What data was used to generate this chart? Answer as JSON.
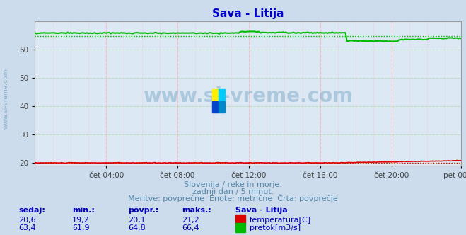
{
  "title": "Sava - Litija",
  "title_color": "#0000cc",
  "bg_color": "#ccdcec",
  "plot_bg_color": "#dce8f4",
  "grid_color_v": "#ffbbbb",
  "grid_color_h": "#bbddbb",
  "watermark": "www.si-vreme.com",
  "watermark_color": "#6699bb",
  "subtitle1": "Slovenija / reke in morje.",
  "subtitle2": "zadnji dan / 5 minut.",
  "subtitle3": "Meritve: povprečne  Enote: metrične  Črta: povprečje",
  "subtitle_color": "#5588aa",
  "xlabels": [
    "čet 04:00",
    "čet 08:00",
    "čet 12:00",
    "čet 16:00",
    "čet 20:00",
    "pet 00:00"
  ],
  "tick_color": "#444444",
  "ylim": [
    19.0,
    70.0
  ],
  "yticks": [
    20,
    30,
    40,
    50,
    60
  ],
  "temp_color": "#dd0000",
  "flow_color": "#00bb00",
  "avg_temp": 20.1,
  "avg_flow": 64.8,
  "side_label": "www.si-vreme.com",
  "legend_title": "Sava - Litija",
  "stat_headers": [
    "sedaj:",
    "min.:",
    "povpr.:",
    "maks.:"
  ],
  "stat_temp": [
    "20,6",
    "19,2",
    "20,1",
    "21,2"
  ],
  "stat_flow": [
    "63,4",
    "61,9",
    "64,8",
    "66,4"
  ],
  "legend_temp": "temperatura[C]",
  "legend_flow": "pretok[m3/s]",
  "n_points": 288,
  "logo_colors": [
    "#ffee00",
    "#00ccff",
    "#0044cc",
    "#0088cc"
  ]
}
